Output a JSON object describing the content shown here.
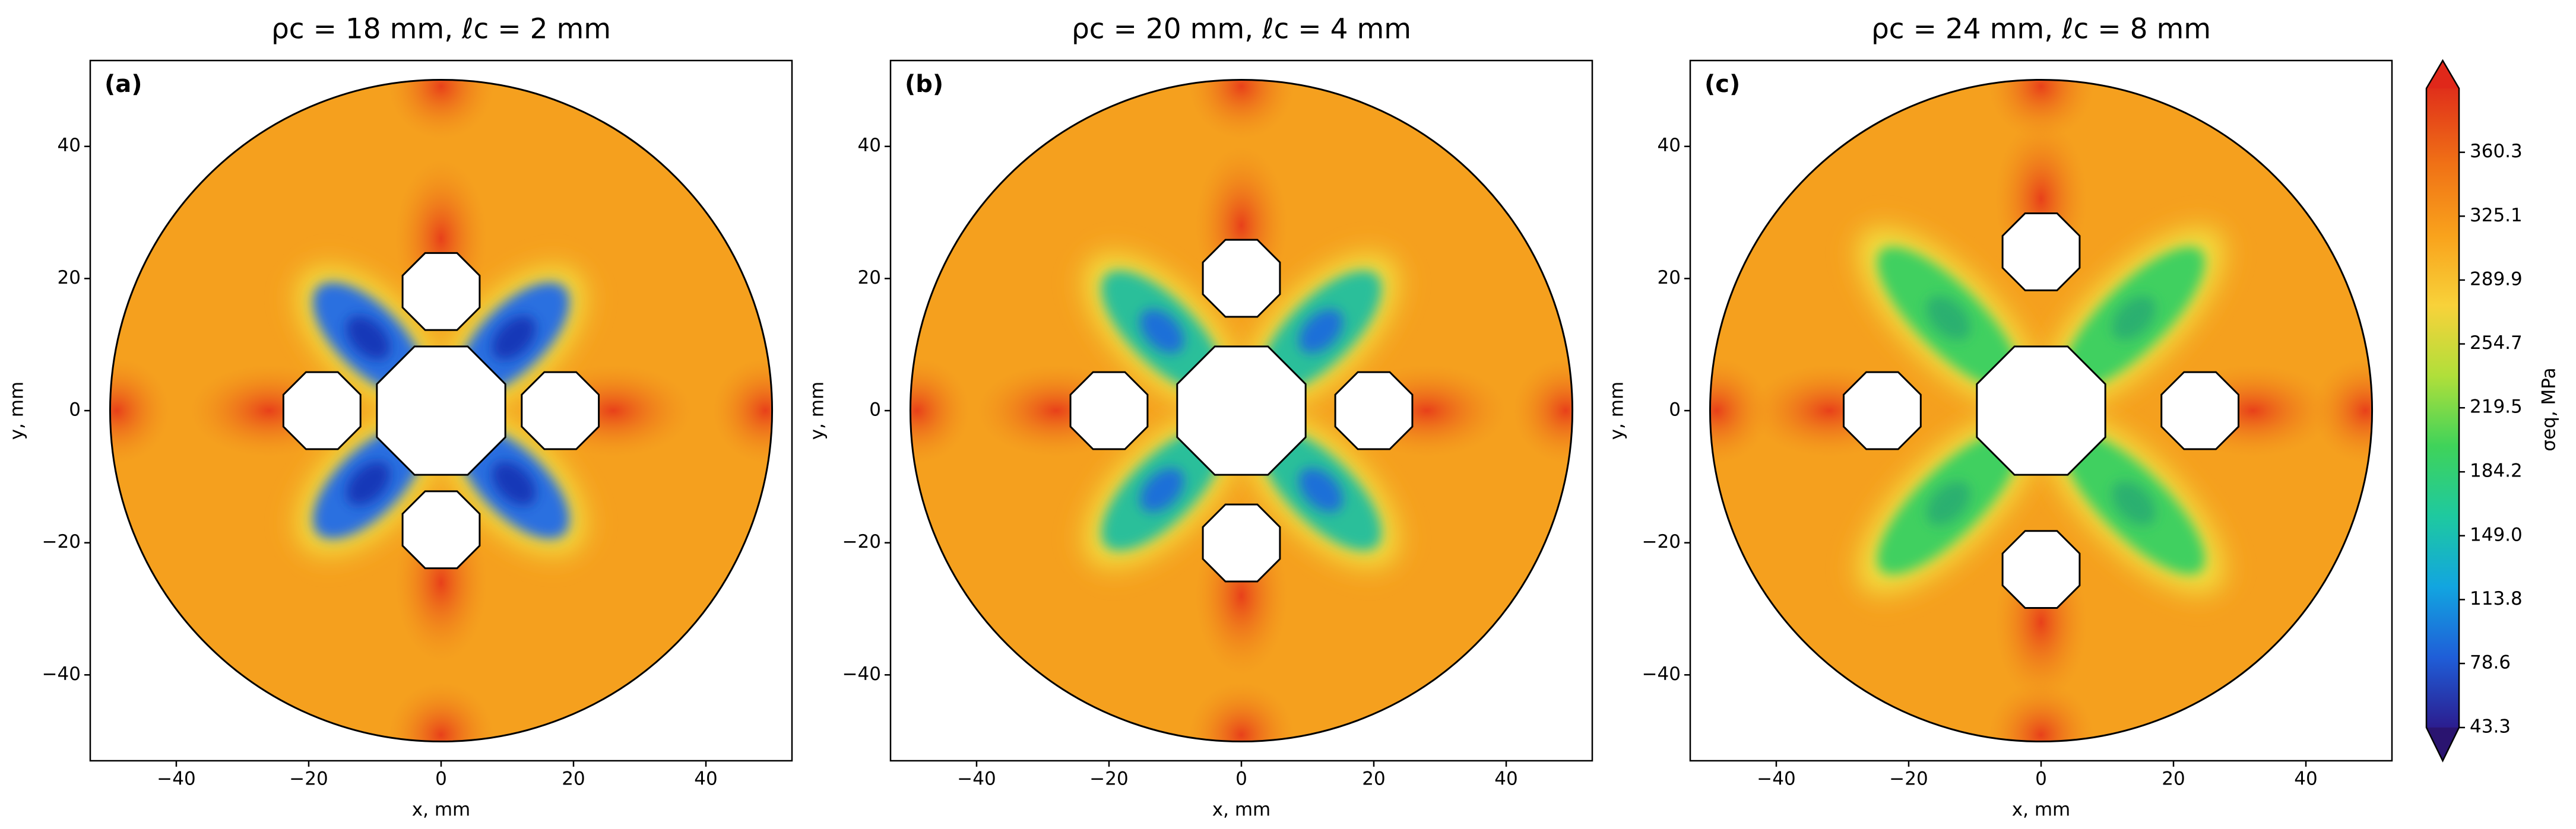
{
  "chart_data": [
    {
      "type": "contour",
      "title": "ρc = 18 mm, ℓc = 2 mm",
      "panel_label": "(a)",
      "rho_c": 18,
      "l_c": 2,
      "x_label": "x, mm",
      "y_label": "y, mm",
      "xlim": [
        -53,
        53
      ],
      "ylim": [
        -53,
        53
      ],
      "xticks": [
        {
          "value": -40,
          "label": "−40"
        },
        {
          "value": -20,
          "label": "−20"
        },
        0,
        20,
        40
      ],
      "yticks": [
        {
          "value": -40,
          "label": "−40"
        },
        {
          "value": -20,
          "label": "−20"
        },
        0,
        20,
        40
      ]
    },
    {
      "type": "contour",
      "title": "ρc = 20 mm, ℓc = 4 mm",
      "panel_label": "(b)",
      "rho_c": 20,
      "l_c": 4,
      "x_label": "x, mm",
      "y_label": "y, mm",
      "xlim": [
        -53,
        53
      ],
      "ylim": [
        -53,
        53
      ],
      "xticks": [
        {
          "value": -40,
          "label": "−40"
        },
        {
          "value": -20,
          "label": "−20"
        },
        0,
        20,
        40
      ],
      "yticks": [
        {
          "value": -40,
          "label": "−40"
        },
        {
          "value": -20,
          "label": "−20"
        },
        0,
        20,
        40
      ]
    },
    {
      "type": "contour",
      "title": "ρc = 24 mm, ℓc = 8 mm",
      "panel_label": "(c)",
      "rho_c": 24,
      "l_c": 8,
      "x_label": "x, mm",
      "y_label": "y, mm",
      "xlim": [
        -53,
        53
      ],
      "ylim": [
        -53,
        53
      ],
      "xticks": [
        {
          "value": -40,
          "label": "−40"
        },
        {
          "value": -20,
          "label": "−20"
        },
        0,
        20,
        40
      ],
      "yticks": [
        {
          "value": -40,
          "label": "−40"
        },
        {
          "value": -20,
          "label": "−20"
        },
        0,
        20,
        40
      ]
    },
    {
      "type": "colorbar",
      "label": "σeq, MPa",
      "clim": [
        43.3,
        395.5
      ],
      "ticks": [
        43.3,
        78.6,
        113.8,
        {
          "value": 149,
          "label": "149.0"
        },
        184.2,
        219.5,
        254.7,
        289.9,
        325.1,
        360.3
      ]
    }
  ]
}
